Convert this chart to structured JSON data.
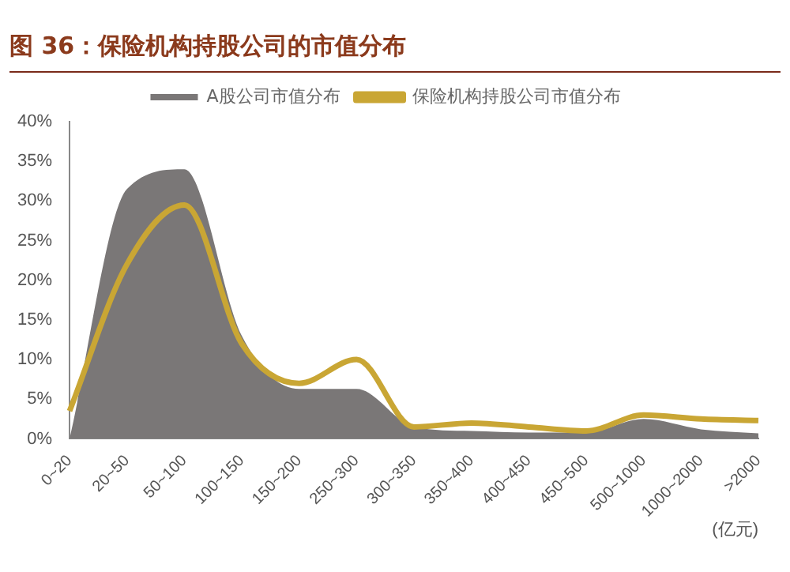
{
  "chart_data": {
    "type": "area",
    "title": "图 36：保险机构持股公司的市值分布",
    "xlabel": "(亿元)",
    "categories": [
      "0~20",
      "20~50",
      "50~100",
      "100~150",
      "150~200",
      "250~300",
      "300~350",
      "350~400",
      "400~450",
      "450~500",
      "500~1000",
      "1000~2000",
      ">2000"
    ],
    "series": [
      {
        "name": "A股公司市值分布",
        "type": "area",
        "color": "#7a7777",
        "values": [
          0,
          31.5,
          34,
          13,
          6.3,
          6.3,
          1.5,
          1,
          0.8,
          0.8,
          2.5,
          1.2,
          0.7
        ]
      },
      {
        "name": "保险机构持股公司市值分布",
        "type": "line",
        "color": "#c9a634",
        "values": [
          3.5,
          22,
          29.5,
          12,
          7,
          10,
          1.5,
          2,
          1.5,
          1,
          3,
          2.5,
          2.3
        ]
      }
    ],
    "ylim": [
      0,
      40
    ],
    "yticks": [
      {
        "value": 0,
        "label": "0%"
      },
      {
        "value": 5,
        "label": "5%"
      },
      {
        "value": 10,
        "label": "10%"
      },
      {
        "value": 15,
        "label": "15%"
      },
      {
        "value": 20,
        "label": "20%"
      },
      {
        "value": 25,
        "label": "25%"
      },
      {
        "value": 30,
        "label": "30%"
      },
      {
        "value": 35,
        "label": "35%"
      },
      {
        "value": 40,
        "label": "40%"
      }
    ],
    "grid": false,
    "legend": "top",
    "marker": "none"
  }
}
